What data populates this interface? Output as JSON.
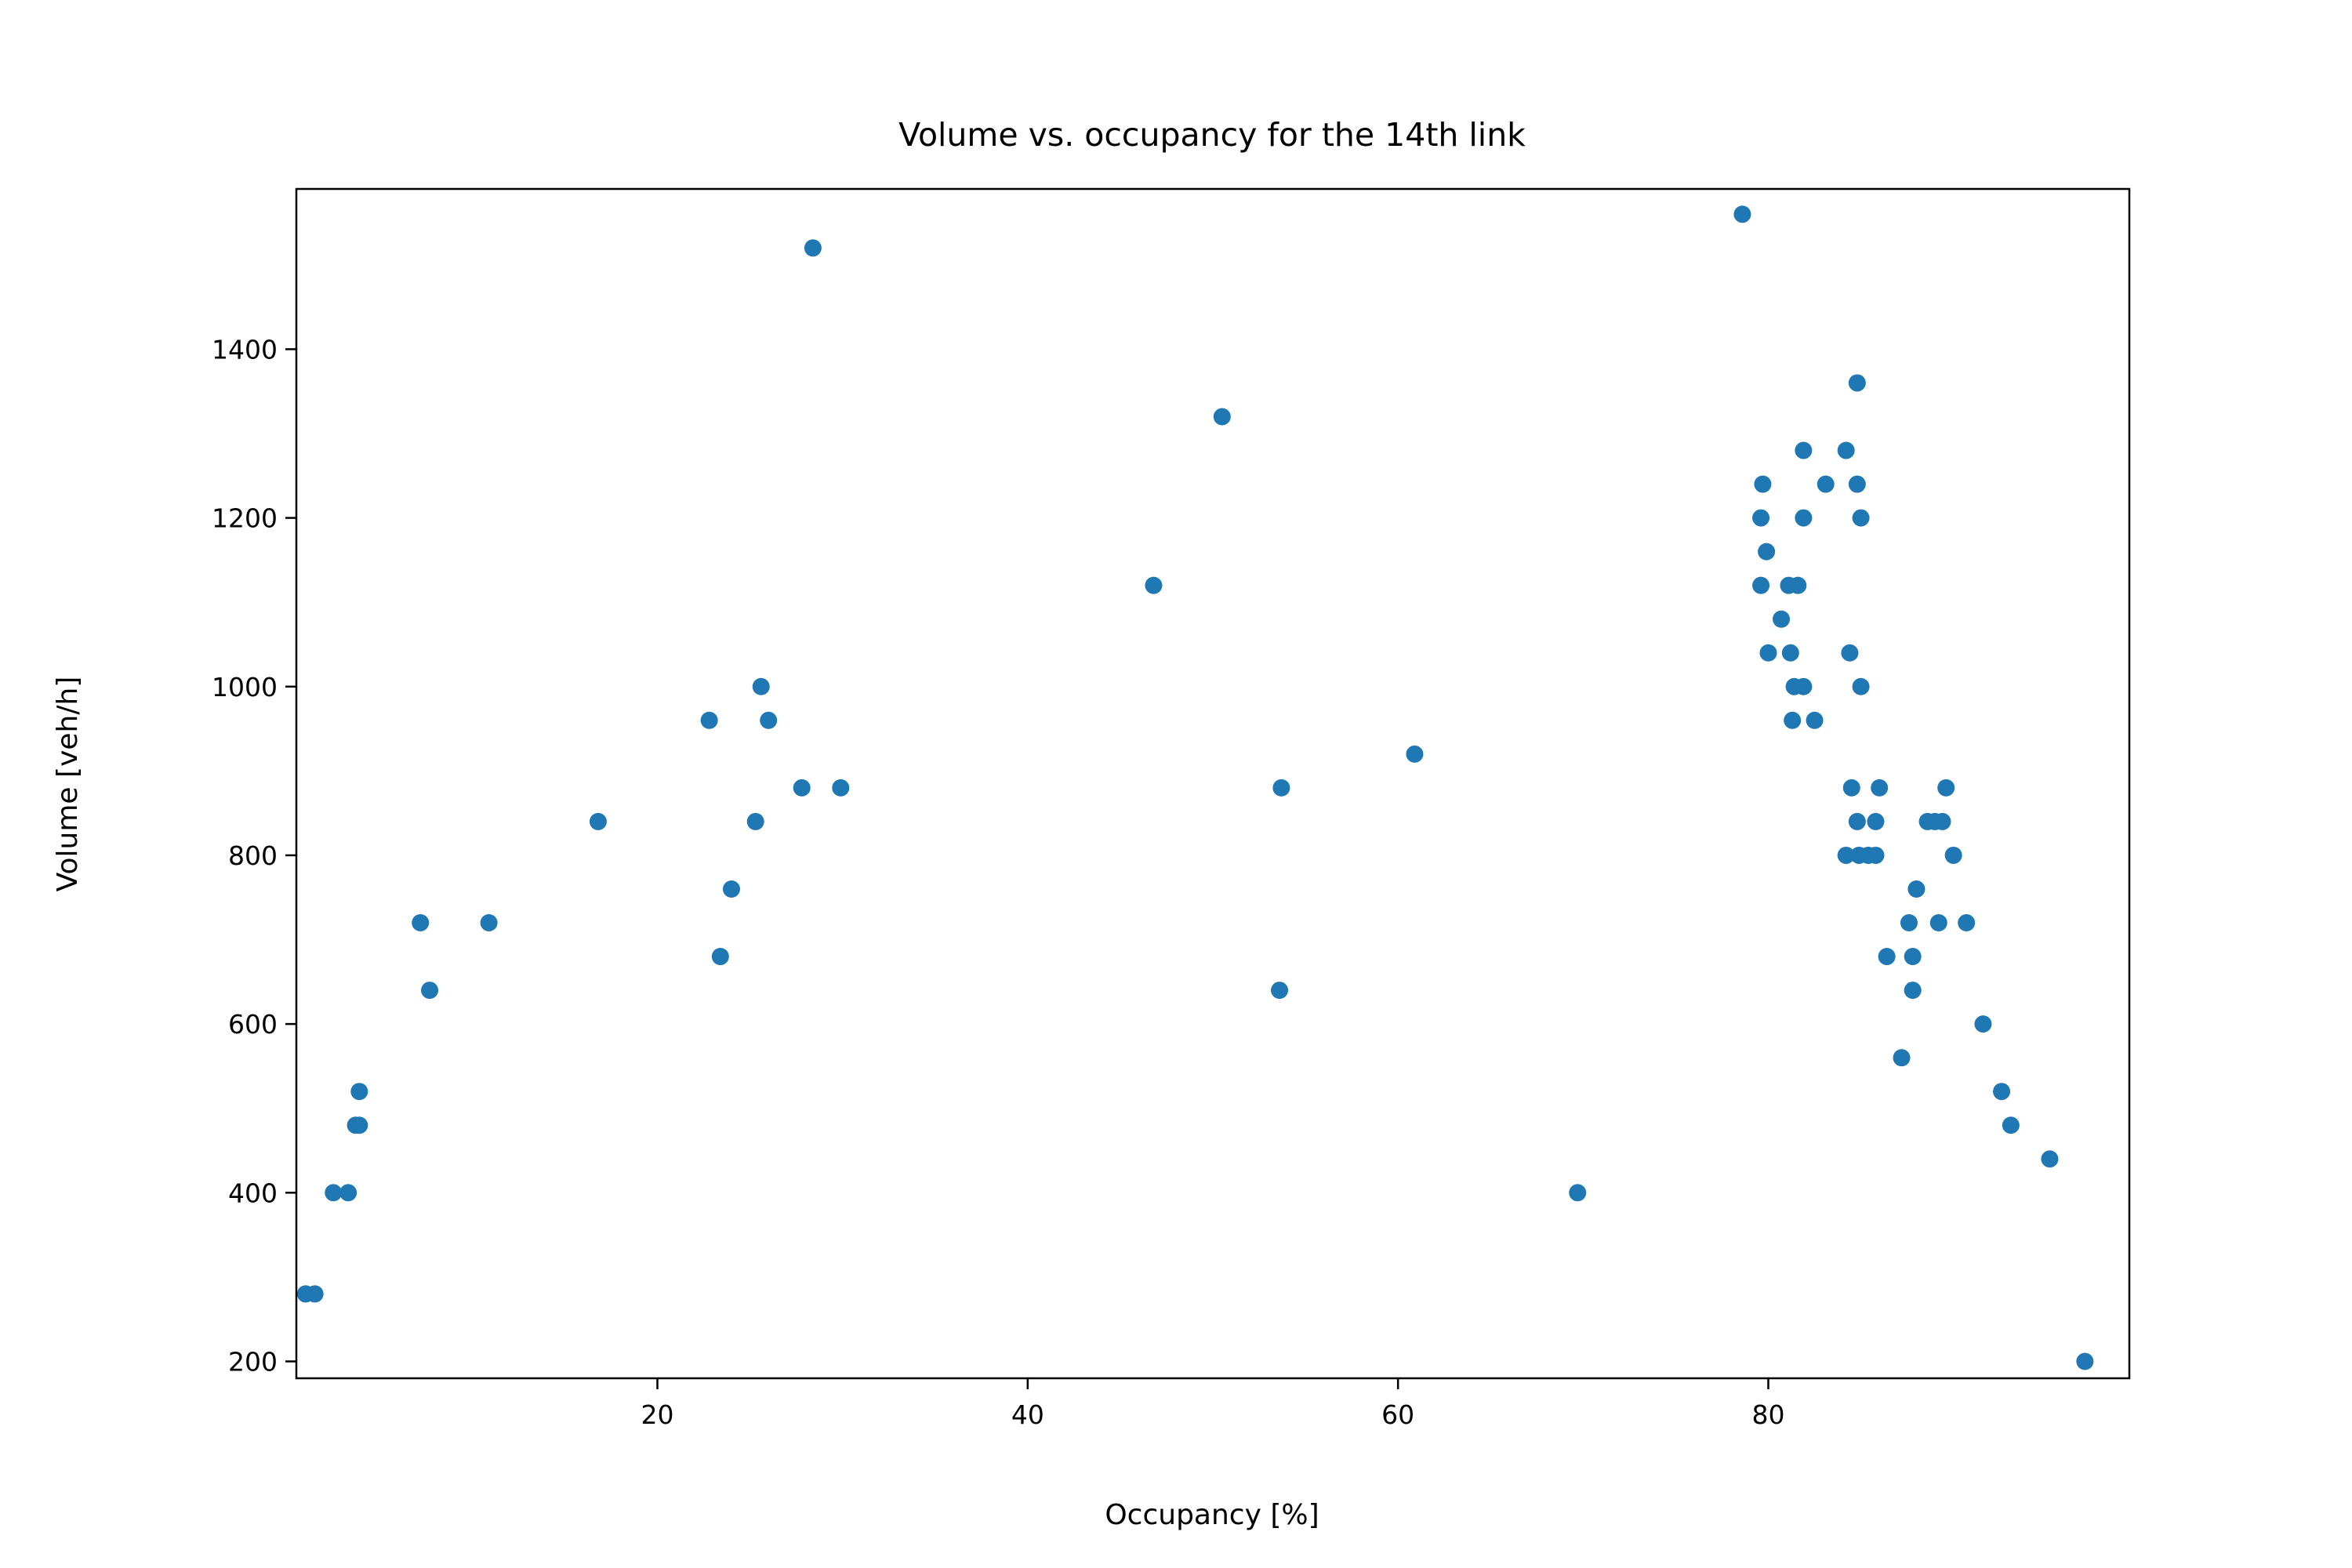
{
  "chart_data": {
    "type": "scatter",
    "title": "Volume vs. occupancy for the 14th link",
    "xlabel": "Occupancy [%]",
    "ylabel": "Volume [veh/h]",
    "xlim": [
      0.5,
      99.5
    ],
    "ylim": [
      180,
      1590
    ],
    "xticks": [
      20,
      40,
      60,
      80
    ],
    "yticks": [
      200,
      400,
      600,
      800,
      1000,
      1200,
      1400
    ],
    "grid": false,
    "legend": "none",
    "color": "#1f77b4",
    "points": [
      {
        "x": 1.0,
        "y": 280
      },
      {
        "x": 1.5,
        "y": 280
      },
      {
        "x": 2.5,
        "y": 400
      },
      {
        "x": 3.3,
        "y": 400
      },
      {
        "x": 3.7,
        "y": 480
      },
      {
        "x": 3.9,
        "y": 480
      },
      {
        "x": 3.9,
        "y": 520
      },
      {
        "x": 7.2,
        "y": 720
      },
      {
        "x": 7.7,
        "y": 640
      },
      {
        "x": 10.9,
        "y": 720
      },
      {
        "x": 16.8,
        "y": 840
      },
      {
        "x": 22.8,
        "y": 960
      },
      {
        "x": 23.4,
        "y": 680
      },
      {
        "x": 24.0,
        "y": 760
      },
      {
        "x": 25.3,
        "y": 840
      },
      {
        "x": 25.6,
        "y": 1000
      },
      {
        "x": 26.0,
        "y": 960
      },
      {
        "x": 27.8,
        "y": 880
      },
      {
        "x": 28.4,
        "y": 1520
      },
      {
        "x": 29.9,
        "y": 880
      },
      {
        "x": 46.8,
        "y": 1120
      },
      {
        "x": 50.5,
        "y": 1320
      },
      {
        "x": 53.6,
        "y": 640
      },
      {
        "x": 53.7,
        "y": 880
      },
      {
        "x": 60.9,
        "y": 920
      },
      {
        "x": 69.7,
        "y": 400
      },
      {
        "x": 78.6,
        "y": 1560
      },
      {
        "x": 79.6,
        "y": 1200
      },
      {
        "x": 79.6,
        "y": 1120
      },
      {
        "x": 79.7,
        "y": 1240
      },
      {
        "x": 79.9,
        "y": 1160
      },
      {
        "x": 80.0,
        "y": 1040
      },
      {
        "x": 80.7,
        "y": 1080
      },
      {
        "x": 81.1,
        "y": 1120
      },
      {
        "x": 81.2,
        "y": 1040
      },
      {
        "x": 81.3,
        "y": 960
      },
      {
        "x": 81.4,
        "y": 1000
      },
      {
        "x": 81.6,
        "y": 1120
      },
      {
        "x": 81.9,
        "y": 1000
      },
      {
        "x": 81.9,
        "y": 1200
      },
      {
        "x": 81.9,
        "y": 1280
      },
      {
        "x": 82.5,
        "y": 960
      },
      {
        "x": 83.1,
        "y": 1240
      },
      {
        "x": 84.2,
        "y": 1280
      },
      {
        "x": 84.2,
        "y": 800
      },
      {
        "x": 84.4,
        "y": 1040
      },
      {
        "x": 84.5,
        "y": 880
      },
      {
        "x": 84.8,
        "y": 1240
      },
      {
        "x": 84.8,
        "y": 1360
      },
      {
        "x": 84.8,
        "y": 840
      },
      {
        "x": 84.9,
        "y": 800
      },
      {
        "x": 85.0,
        "y": 1200
      },
      {
        "x": 85.0,
        "y": 1000
      },
      {
        "x": 85.4,
        "y": 800
      },
      {
        "x": 85.8,
        "y": 840
      },
      {
        "x": 85.8,
        "y": 800
      },
      {
        "x": 86.0,
        "y": 880
      },
      {
        "x": 86.4,
        "y": 680
      },
      {
        "x": 87.2,
        "y": 560
      },
      {
        "x": 87.6,
        "y": 720
      },
      {
        "x": 87.8,
        "y": 680
      },
      {
        "x": 87.8,
        "y": 640
      },
      {
        "x": 88.0,
        "y": 760
      },
      {
        "x": 88.6,
        "y": 840
      },
      {
        "x": 89.0,
        "y": 840
      },
      {
        "x": 89.2,
        "y": 720
      },
      {
        "x": 89.4,
        "y": 840
      },
      {
        "x": 89.6,
        "y": 880
      },
      {
        "x": 90.0,
        "y": 800
      },
      {
        "x": 90.7,
        "y": 720
      },
      {
        "x": 91.6,
        "y": 600
      },
      {
        "x": 92.6,
        "y": 520
      },
      {
        "x": 93.1,
        "y": 480
      },
      {
        "x": 95.2,
        "y": 440
      },
      {
        "x": 97.1,
        "y": 200
      }
    ]
  }
}
